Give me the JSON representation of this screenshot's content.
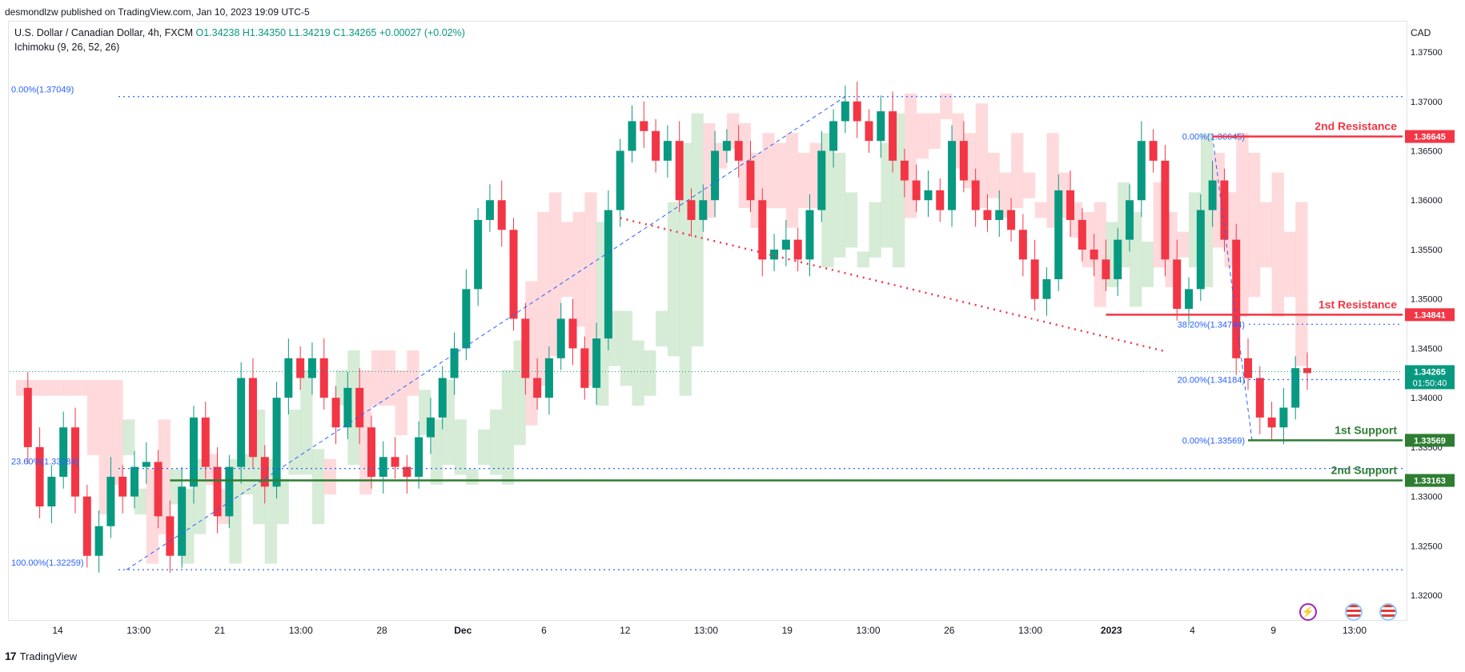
{
  "header": {
    "published": "desmondlzw published on TradingView.com, Jan 10, 2023 19:09 UTC-5",
    "symbol": "U.S. Dollar / Canadian Dollar, 4h, FXCM",
    "ohlc": "O1.34238 H1.34350 L1.34219 C1.34265 +0.00027 (+0.02%)",
    "indicator": "Ichimoku (9, 26, 52, 26)",
    "currency": "CAD"
  },
  "footer": {
    "brand": "TradingView",
    "logo": "tradingview-logo"
  },
  "icons": [
    "lightning-icon",
    "us-flag-icon",
    "us-flag-icon"
  ],
  "colors": {
    "up": "#089981",
    "down": "#f23645",
    "fib": "#2962ff",
    "resistance": "#f23645",
    "support": "#2e7d32",
    "cloud_bull": "#c8e6c9",
    "cloud_bear": "#ffcdd2"
  },
  "chart_data": {
    "type": "candlestick",
    "ylim": [
      1.3175,
      1.378
    ],
    "y_ticks": [
      "1.37500",
      "1.37000",
      "1.36500",
      "1.36000",
      "1.35500",
      "1.35000",
      "1.34500",
      "1.34000",
      "1.33500",
      "1.33000",
      "1.32500",
      "1.32000"
    ],
    "x_ticks": [
      "14",
      "13:00",
      "21",
      "13:00",
      "28",
      "Dec",
      "6",
      "12",
      "13:00",
      "19",
      "13:00",
      "26",
      "13:00",
      "2023",
      "4",
      "9",
      "13:00"
    ],
    "price_series": [
      [
        0,
        1.341
      ],
      [
        1,
        1.335
      ],
      [
        2,
        1.329
      ],
      [
        3,
        1.332
      ],
      [
        4,
        1.337
      ],
      [
        5,
        1.33
      ],
      [
        6,
        1.324
      ],
      [
        7,
        1.327
      ],
      [
        8,
        1.332
      ],
      [
        9,
        1.33
      ],
      [
        10,
        1.333
      ],
      [
        11,
        1.3335
      ],
      [
        12,
        1.328
      ],
      [
        13,
        1.324
      ],
      [
        14,
        1.331
      ],
      [
        15,
        1.338
      ],
      [
        16,
        1.333
      ],
      [
        17,
        1.328
      ],
      [
        18,
        1.333
      ],
      [
        19,
        1.342
      ],
      [
        20,
        1.334
      ],
      [
        21,
        1.331
      ],
      [
        22,
        1.34
      ],
      [
        23,
        1.344
      ],
      [
        24,
        1.342
      ],
      [
        25,
        1.344
      ],
      [
        26,
        1.34
      ],
      [
        27,
        1.337
      ],
      [
        28,
        1.341
      ],
      [
        29,
        1.337
      ],
      [
        30,
        1.332
      ],
      [
        31,
        1.334
      ],
      [
        32,
        1.333
      ],
      [
        33,
        1.332
      ],
      [
        34,
        1.336
      ],
      [
        35,
        1.338
      ],
      [
        36,
        1.342
      ],
      [
        37,
        1.345
      ],
      [
        38,
        1.351
      ],
      [
        39,
        1.358
      ],
      [
        40,
        1.36
      ],
      [
        41,
        1.357
      ],
      [
        42,
        1.348
      ],
      [
        43,
        1.342
      ],
      [
        44,
        1.34
      ],
      [
        45,
        1.344
      ],
      [
        46,
        1.348
      ],
      [
        47,
        1.345
      ],
      [
        48,
        1.341
      ],
      [
        49,
        1.346
      ],
      [
        50,
        1.359
      ],
      [
        51,
        1.365
      ],
      [
        52,
        1.368
      ],
      [
        53,
        1.367
      ],
      [
        54,
        1.364
      ],
      [
        55,
        1.366
      ],
      [
        56,
        1.36
      ],
      [
        57,
        1.358
      ],
      [
        58,
        1.36
      ],
      [
        59,
        1.365
      ],
      [
        60,
        1.366
      ],
      [
        61,
        1.364
      ],
      [
        62,
        1.36
      ],
      [
        63,
        1.354
      ],
      [
        64,
        1.355
      ],
      [
        65,
        1.356
      ],
      [
        66,
        1.354
      ],
      [
        67,
        1.359
      ],
      [
        68,
        1.365
      ],
      [
        69,
        1.368
      ],
      [
        70,
        1.37
      ],
      [
        71,
        1.368
      ],
      [
        72,
        1.366
      ],
      [
        73,
        1.369
      ],
      [
        74,
        1.364
      ],
      [
        75,
        1.362
      ],
      [
        76,
        1.36
      ],
      [
        77,
        1.361
      ],
      [
        78,
        1.359
      ],
      [
        79,
        1.366
      ],
      [
        80,
        1.362
      ],
      [
        81,
        1.359
      ],
      [
        82,
        1.358
      ],
      [
        83,
        1.359
      ],
      [
        84,
        1.357
      ],
      [
        85,
        1.354
      ],
      [
        86,
        1.35
      ],
      [
        87,
        1.352
      ],
      [
        88,
        1.361
      ],
      [
        89,
        1.358
      ],
      [
        90,
        1.355
      ],
      [
        91,
        1.354
      ],
      [
        92,
        1.352
      ],
      [
        93,
        1.356
      ],
      [
        94,
        1.36
      ],
      [
        95,
        1.366
      ],
      [
        96,
        1.364
      ],
      [
        97,
        1.354
      ],
      [
        98,
        1.349
      ],
      [
        99,
        1.351
      ],
      [
        100,
        1.359
      ],
      [
        101,
        1.362
      ],
      [
        102,
        1.356
      ],
      [
        103,
        1.344
      ],
      [
        104,
        1.342
      ],
      [
        105,
        1.338
      ],
      [
        106,
        1.337
      ],
      [
        107,
        1.339
      ],
      [
        108,
        1.343
      ],
      [
        109,
        1.3425
      ]
    ],
    "levels": [
      {
        "name": "2nd Resistance",
        "value": 1.36645,
        "value_label": "1.36645",
        "color": "#f23645"
      },
      {
        "name": "1st Resistance",
        "value": 1.34841,
        "value_label": "1.34841",
        "color": "#f23645"
      },
      {
        "name": "1st Support",
        "value": 1.33569,
        "value_label": "1.33569",
        "color": "#2e7d32"
      },
      {
        "name": "2nd Support",
        "value": 1.33163,
        "value_label": "1.33163",
        "color": "#2e7d32"
      }
    ],
    "current_price": {
      "value": 1.34265,
      "label": "1.34265",
      "countdown": "01:50:40"
    },
    "fib_left": [
      {
        "label": "0.00%(1.37049)",
        "value": 1.37049
      },
      {
        "label": "23.60%(1.33284)",
        "value": 1.33284
      },
      {
        "label": "100.00%(1.32259)",
        "value": 1.32259
      }
    ],
    "fib_right": [
      {
        "label": "0.00%(1.36645)",
        "value": 1.36645
      },
      {
        "label": "38.20%(1.34744)",
        "value": 1.34744
      },
      {
        "label": "20.00%(1.34184)",
        "value": 1.34184
      },
      {
        "label": "0.00%(1.33569)",
        "value": 1.33569
      }
    ]
  }
}
